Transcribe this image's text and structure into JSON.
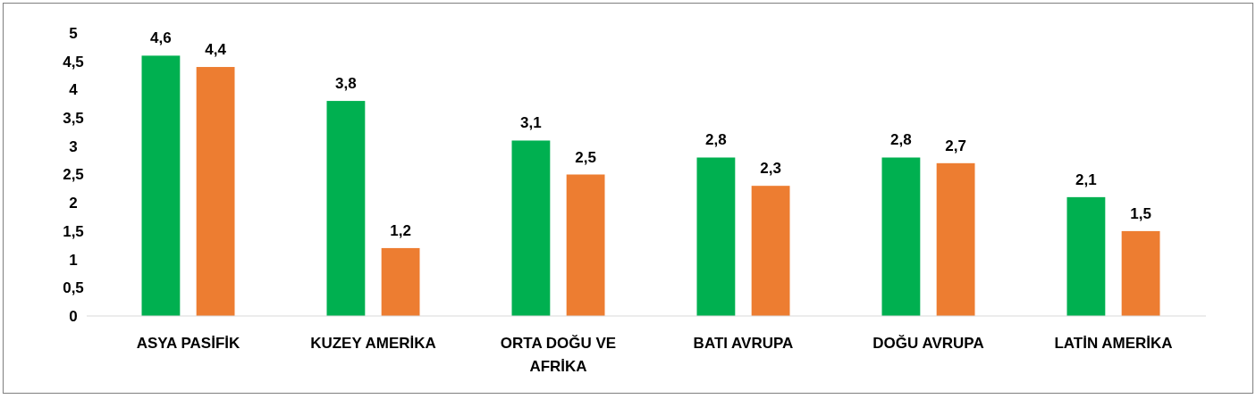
{
  "chart_data": {
    "type": "bar",
    "categories": [
      "ASYA PASİFİK",
      "KUZEY AMERİKA",
      "ORTA DOĞU VE AFRİKA",
      "BATI AVRUPA",
      "DOĞU AVRUPA",
      "LATİN AMERİKA"
    ],
    "series": [
      {
        "color": "#00b050",
        "values": [
          4.6,
          3.8,
          3.1,
          2.8,
          2.8,
          2.1
        ],
        "value_labels": [
          "4,6",
          "3,8",
          "3,1",
          "2,8",
          "2,8",
          "2,1"
        ]
      },
      {
        "color": "#ed7d31",
        "values": [
          4.4,
          1.2,
          2.5,
          2.3,
          2.7,
          1.5
        ],
        "value_labels": [
          "4,4",
          "1,2",
          "2,5",
          "2,3",
          "2,7",
          "1,5"
        ]
      }
    ],
    "ylim": [
      0,
      5
    ],
    "yticks": [
      0,
      {
        "value": 0.5,
        "label": "0,5"
      },
      1,
      {
        "value": 1.5,
        "label": "1,5"
      },
      2,
      {
        "value": 2.5,
        "label": "2,5"
      },
      3,
      {
        "value": 3.5,
        "label": "3,5"
      },
      4,
      {
        "value": 4.5,
        "label": "4,5"
      },
      5
    ],
    "grid": false
  }
}
